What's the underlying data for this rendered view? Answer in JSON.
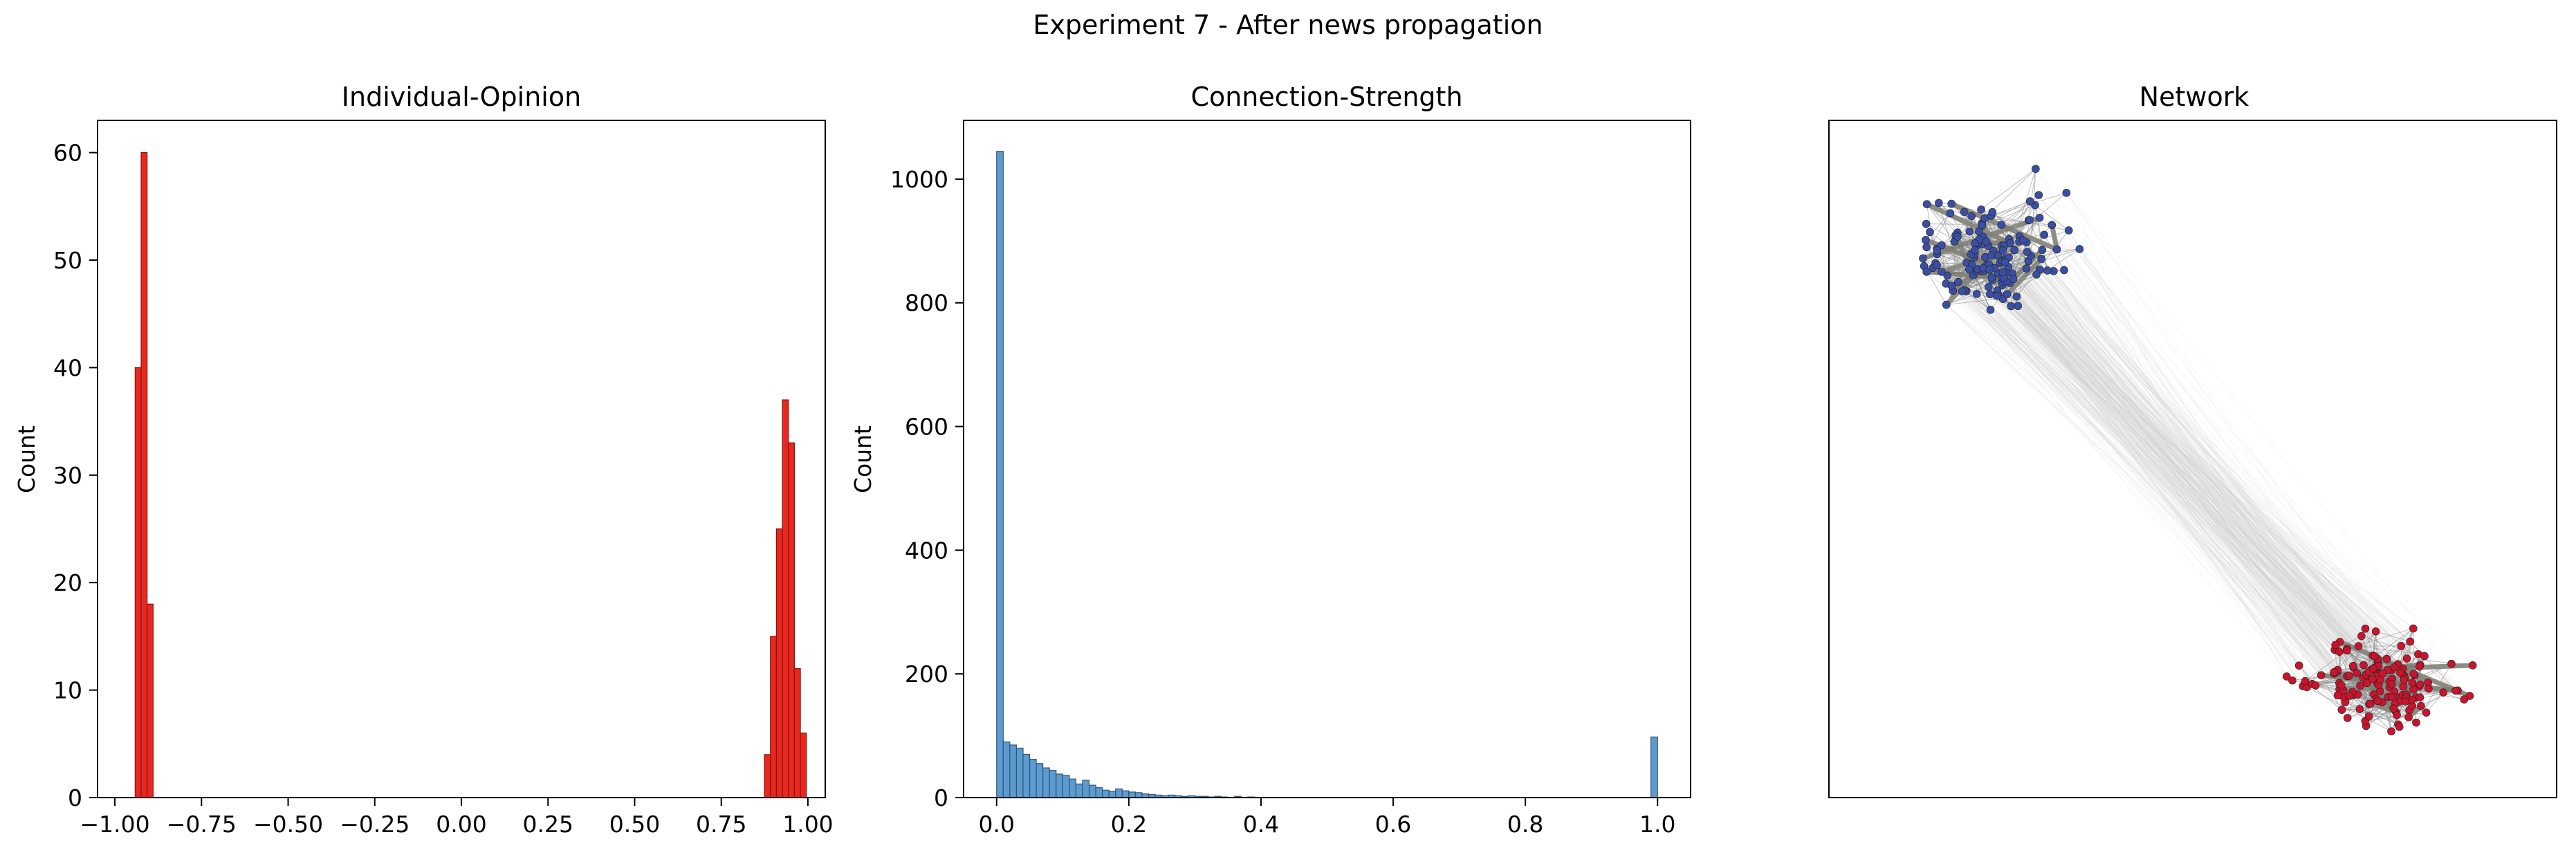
{
  "figure": {
    "suptitle": "Experiment 7 - After news propagation"
  },
  "chart_data": [
    {
      "type": "bar",
      "title": "Individual-Opinion",
      "xlabel": "",
      "ylabel": "Count",
      "xlim": [
        -1.05,
        1.05
      ],
      "ylim": [
        0,
        63
      ],
      "xticks": [
        -1.0,
        -0.75,
        -0.5,
        -0.25,
        0.0,
        0.25,
        0.5,
        0.75,
        1.0
      ],
      "xtick_labels": [
        "−1.00",
        "−0.75",
        "−0.50",
        "−0.25",
        "0.00",
        "0.25",
        "0.50",
        "0.75",
        "1.00"
      ],
      "yticks": [
        0,
        10,
        20,
        30,
        40,
        50,
        60
      ],
      "ytick_labels": [
        "0",
        "10",
        "20",
        "30",
        "40",
        "50",
        "60"
      ],
      "bin_width": 0.0173,
      "color": "#e8281f",
      "bins": [
        {
          "x": -0.9415,
          "count": 40
        },
        {
          "x": -0.9242,
          "count": 60
        },
        {
          "x": -0.9069,
          "count": 18
        },
        {
          "x": 0.8745,
          "count": 4
        },
        {
          "x": 0.8918,
          "count": 15
        },
        {
          "x": 0.9091,
          "count": 25
        },
        {
          "x": 0.9264,
          "count": 37
        },
        {
          "x": 0.9437,
          "count": 33
        },
        {
          "x": 0.961,
          "count": 12
        },
        {
          "x": 0.9783,
          "count": 6
        }
      ]
    },
    {
      "type": "bar",
      "title": "Connection-Strength",
      "xlabel": "",
      "ylabel": "Count",
      "xlim": [
        -0.05,
        1.05
      ],
      "ylim": [
        0,
        1095
      ],
      "xticks": [
        0.0,
        0.2,
        0.4,
        0.6,
        0.8,
        1.0
      ],
      "xtick_labels": [
        "0.0",
        "0.2",
        "0.4",
        "0.6",
        "0.8",
        "1.0"
      ],
      "yticks": [
        0,
        200,
        400,
        600,
        800,
        1000
      ],
      "ytick_labels": [
        "0",
        "200",
        "400",
        "600",
        "800",
        "1000"
      ],
      "bin_width": 0.01,
      "color": "#5b9bd1",
      "bins": [
        {
          "x": 0.0,
          "count": 1045
        },
        {
          "x": 0.01,
          "count": 90
        },
        {
          "x": 0.02,
          "count": 85
        },
        {
          "x": 0.03,
          "count": 80
        },
        {
          "x": 0.04,
          "count": 70
        },
        {
          "x": 0.05,
          "count": 62
        },
        {
          "x": 0.06,
          "count": 55
        },
        {
          "x": 0.07,
          "count": 48
        },
        {
          "x": 0.08,
          "count": 44
        },
        {
          "x": 0.09,
          "count": 38
        },
        {
          "x": 0.1,
          "count": 36
        },
        {
          "x": 0.11,
          "count": 30
        },
        {
          "x": 0.12,
          "count": 22
        },
        {
          "x": 0.13,
          "count": 28
        },
        {
          "x": 0.14,
          "count": 20
        },
        {
          "x": 0.15,
          "count": 16
        },
        {
          "x": 0.16,
          "count": 12
        },
        {
          "x": 0.17,
          "count": 10
        },
        {
          "x": 0.18,
          "count": 14
        },
        {
          "x": 0.19,
          "count": 11
        },
        {
          "x": 0.2,
          "count": 9
        },
        {
          "x": 0.21,
          "count": 8
        },
        {
          "x": 0.22,
          "count": 6
        },
        {
          "x": 0.23,
          "count": 5
        },
        {
          "x": 0.24,
          "count": 4
        },
        {
          "x": 0.25,
          "count": 3
        },
        {
          "x": 0.26,
          "count": 4
        },
        {
          "x": 0.27,
          "count": 3
        },
        {
          "x": 0.28,
          "count": 2
        },
        {
          "x": 0.29,
          "count": 3
        },
        {
          "x": 0.3,
          "count": 2
        },
        {
          "x": 0.31,
          "count": 2
        },
        {
          "x": 0.32,
          "count": 1
        },
        {
          "x": 0.33,
          "count": 2
        },
        {
          "x": 0.34,
          "count": 1
        },
        {
          "x": 0.36,
          "count": 2
        },
        {
          "x": 0.38,
          "count": 1
        },
        {
          "x": 0.99,
          "count": 98
        }
      ]
    },
    {
      "type": "network",
      "title": "Network",
      "groups": [
        {
          "name": "",
          "color": "#3a4fa3",
          "nodes": 140
        },
        {
          "name": "",
          "color": "#c8142c",
          "nodes": 140
        }
      ],
      "axes_visible": false
    }
  ]
}
